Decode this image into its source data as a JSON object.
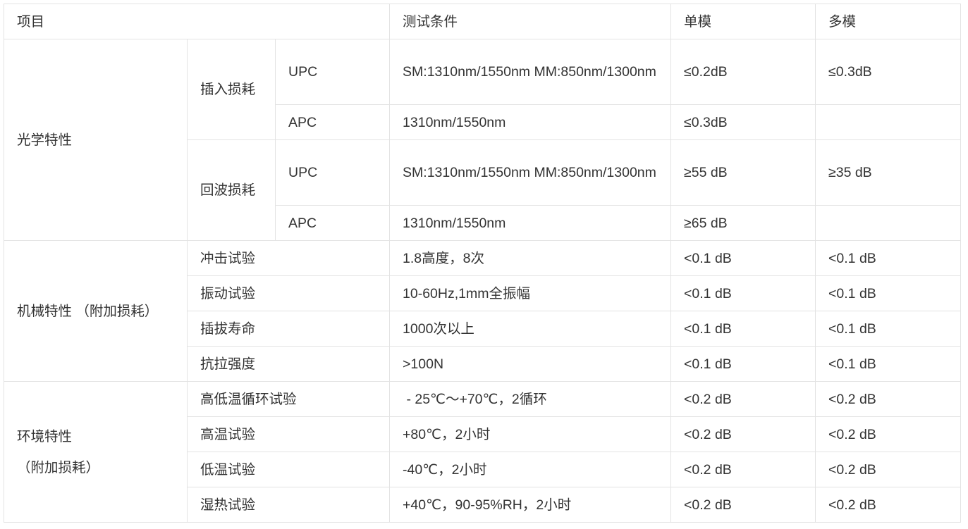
{
  "header": [
    "项目",
    "测试条件",
    "单模",
    "多模"
  ],
  "optical": {
    "label": "光学特性",
    "insertion": {
      "label": "插入损耗",
      "upc": {
        "type": "UPC",
        "cond": "SM:1310nm/1550nm MM:850nm/1300nm",
        "sm": "≤0.2dB",
        "mm": "≤0.3dB"
      },
      "apc": {
        "type": "APC",
        "cond": "1310nm/1550nm",
        "sm": "≤0.3dB",
        "mm": ""
      }
    },
    "return": {
      "label": "回波损耗",
      "upc": {
        "type": "UPC",
        "cond": "SM:1310nm/1550nm MM:850nm/1300nm",
        "sm": "≥55 dB",
        "mm": "≥35 dB"
      },
      "apc": {
        "type": "APC",
        "cond": "1310nm/1550nm",
        "sm": "≥65 dB",
        "mm": ""
      }
    }
  },
  "mechanical": {
    "label": "机械特性 （附加损耗）",
    "rows": [
      {
        "item": "冲击试验",
        "cond": "1.8高度，8次",
        "sm": "<0.1 dB",
        "mm": "<0.1 dB"
      },
      {
        "item": "振动试验",
        "cond": "10-60Hz,1mm全振幅",
        "sm": "<0.1 dB",
        "mm": "<0.1 dB"
      },
      {
        "item": "插拔寿命",
        "cond": "1000次以上",
        "sm": "<0.1 dB",
        "mm": "<0.1 dB"
      },
      {
        "item": "抗拉强度",
        "cond": ">100N",
        "sm": "<0.1 dB",
        "mm": "<0.1 dB"
      }
    ]
  },
  "environment": {
    "label": "环境特性",
    "label2": "（附加损耗）",
    "rows": [
      {
        "item": "高低温循环试验",
        "cond": " - 25℃～+70℃，2循环",
        "sm": "<0.2 dB",
        "mm": "<0.2 dB"
      },
      {
        "item": "高温试验",
        "cond": "+80℃，2小时",
        "sm": "<0.2 dB",
        "mm": "<0.2 dB"
      },
      {
        "item": "低温试验",
        "cond": "-40℃，2小时",
        "sm": "<0.2 dB",
        "mm": "<0.2 dB"
      },
      {
        "item": "湿热试验",
        "cond": "+40℃，90-95%RH，2小时",
        "sm": "<0.2 dB",
        "mm": "<0.2 dB"
      }
    ]
  }
}
